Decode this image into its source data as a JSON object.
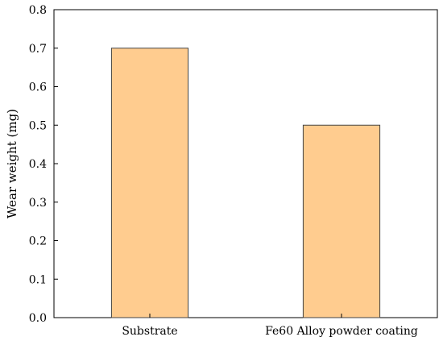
{
  "chart_data": {
    "type": "bar",
    "categories": [
      "Substrate",
      "Fe60 Alloy powder coating"
    ],
    "values": [
      0.7,
      0.5
    ],
    "xlabel": "",
    "ylabel": "Wear weight (mg)",
    "ylim": [
      0,
      0.8
    ],
    "yticks": [
      0.0,
      0.1,
      0.2,
      0.3,
      0.4,
      0.5,
      0.6,
      0.7,
      0.8
    ],
    "ytick_labels": [
      "0.0",
      "0.1",
      "0.2",
      "0.3",
      "0.4",
      "0.5",
      "0.6",
      "0.7",
      "0.8"
    ],
    "grid": false,
    "legend": "none",
    "bar_color": "#FFCC8F",
    "bar_edge_color": "#444444"
  }
}
